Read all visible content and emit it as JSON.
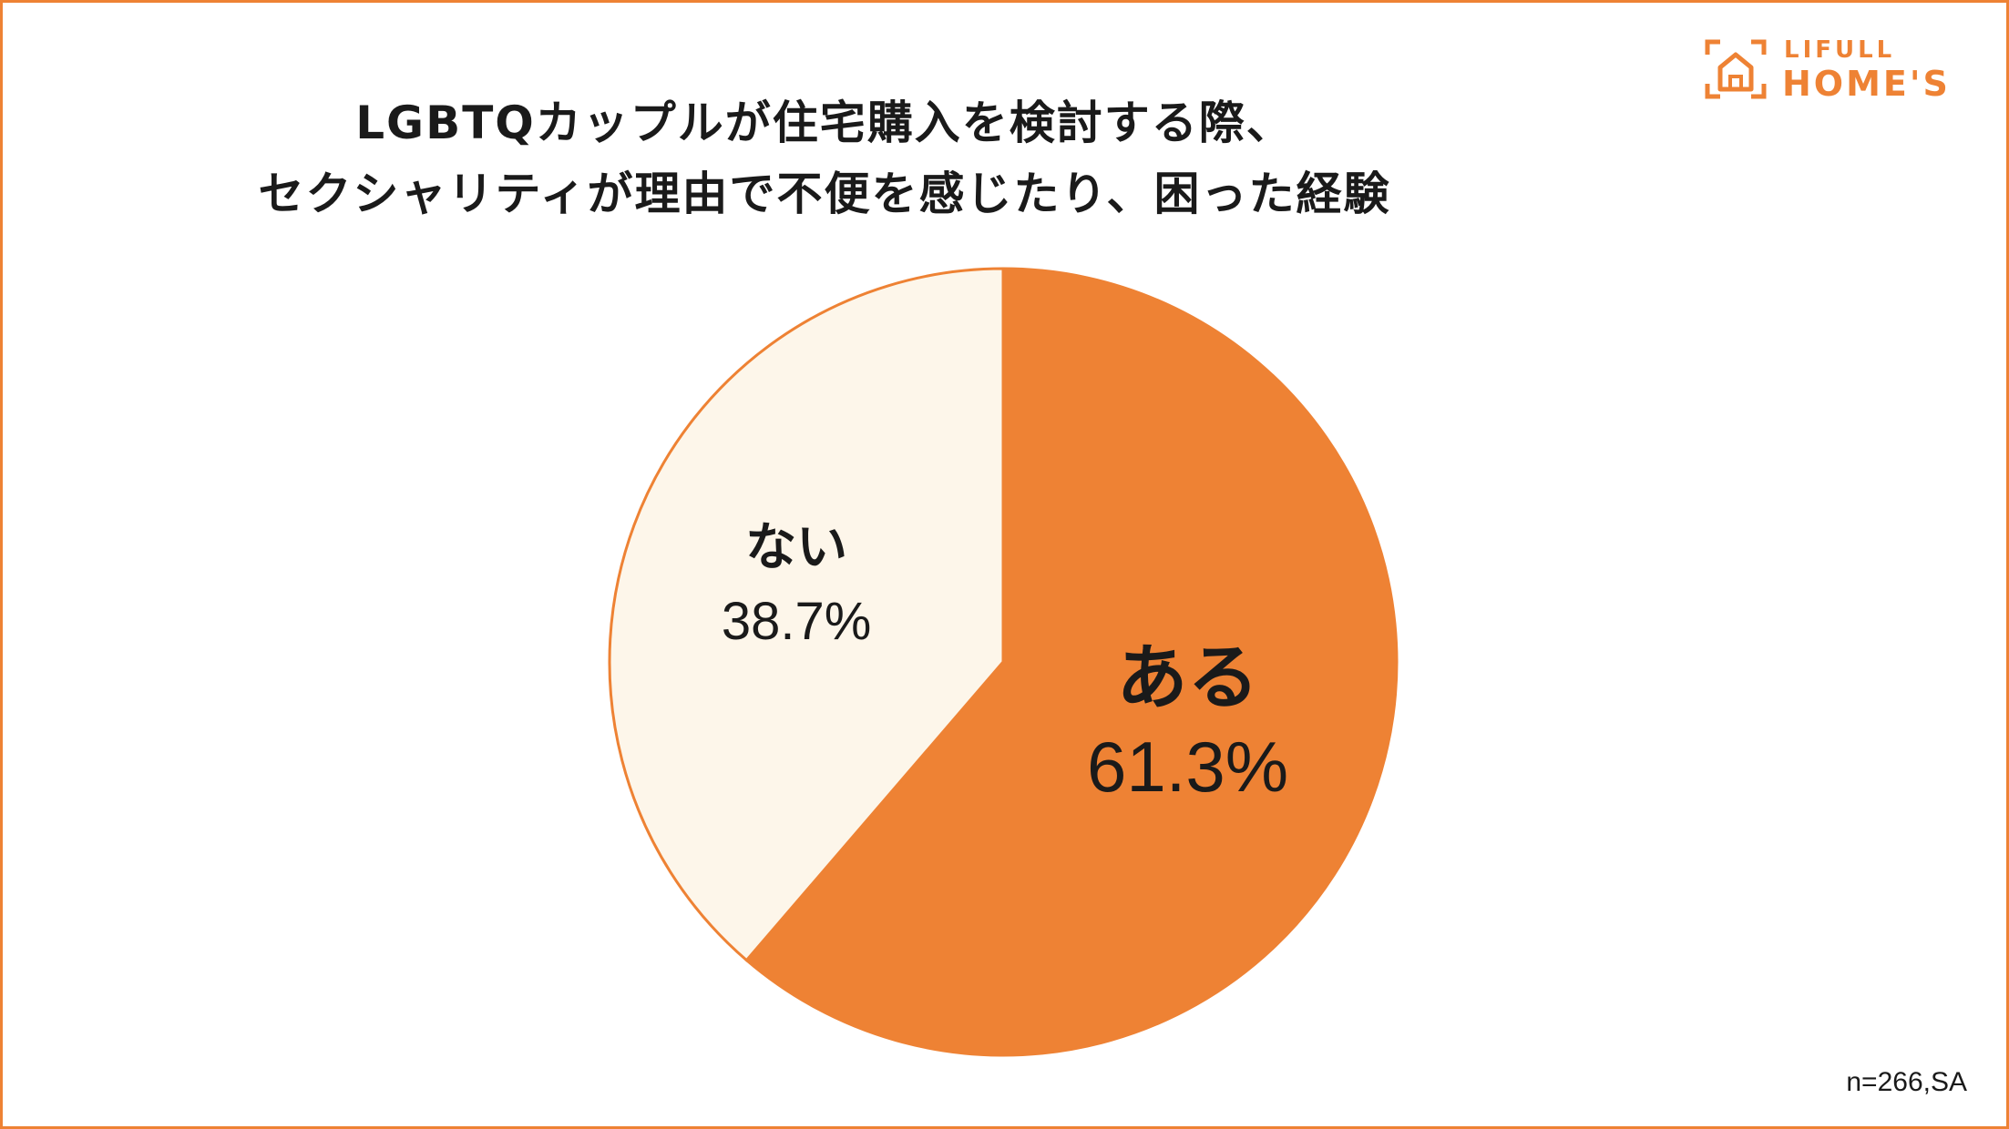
{
  "title_line1": "LGBTQカップルが住宅購入を検討する際、",
  "title_line2": "セクシャリティが理由で不便を感じたり、困った経験",
  "logo": {
    "top": "LIFULL",
    "bottom": "HOME'S"
  },
  "footnote": "n=266,SA",
  "colors": {
    "accent": "#ee8234",
    "light": "#fdf6ea"
  },
  "chart_data": {
    "type": "pie",
    "slices": [
      {
        "label": "ある",
        "value": 61.3,
        "display": "61.3%",
        "color": "#ee8234"
      },
      {
        "label": "ない",
        "value": 38.7,
        "display": "38.7%",
        "color": "#fdf6ea"
      }
    ],
    "start": "12 o'clock",
    "direction": "clockwise"
  }
}
